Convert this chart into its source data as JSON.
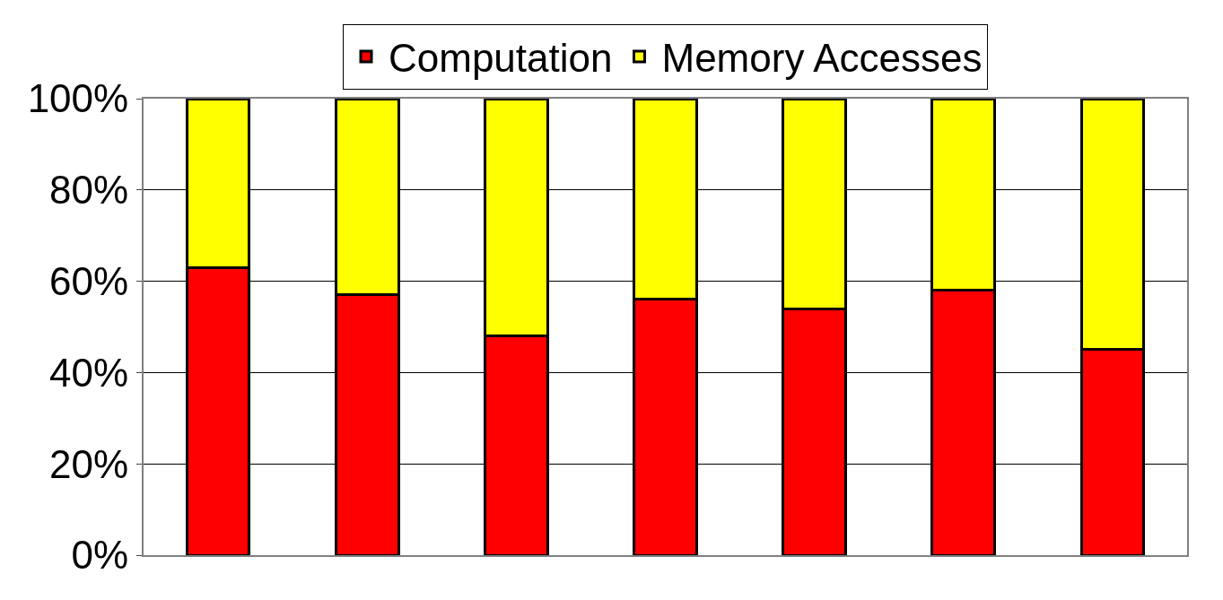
{
  "chart_data": {
    "type": "bar",
    "stacked": true,
    "categories": [
      null,
      null,
      null,
      null,
      null,
      null,
      null
    ],
    "series": [
      {
        "name": "Computation",
        "color": "#ff0000",
        "values": [
          63,
          57,
          48,
          56,
          54,
          58,
          45
        ]
      },
      {
        "name": "Memory Accesses",
        "color": "#ffff00",
        "values": [
          37,
          43,
          52,
          44,
          46,
          42,
          55
        ]
      }
    ],
    "ylim": [
      0,
      100
    ],
    "yticks": [
      {
        "value": 0,
        "label": "0%"
      },
      {
        "value": 20,
        "label": "20%"
      },
      {
        "value": 40,
        "label": "40%"
      },
      {
        "value": 60,
        "label": "60%"
      },
      {
        "value": 80,
        "label": "80%"
      },
      {
        "value": 100,
        "label": "100%"
      }
    ],
    "grid": "y",
    "legend": "top"
  }
}
